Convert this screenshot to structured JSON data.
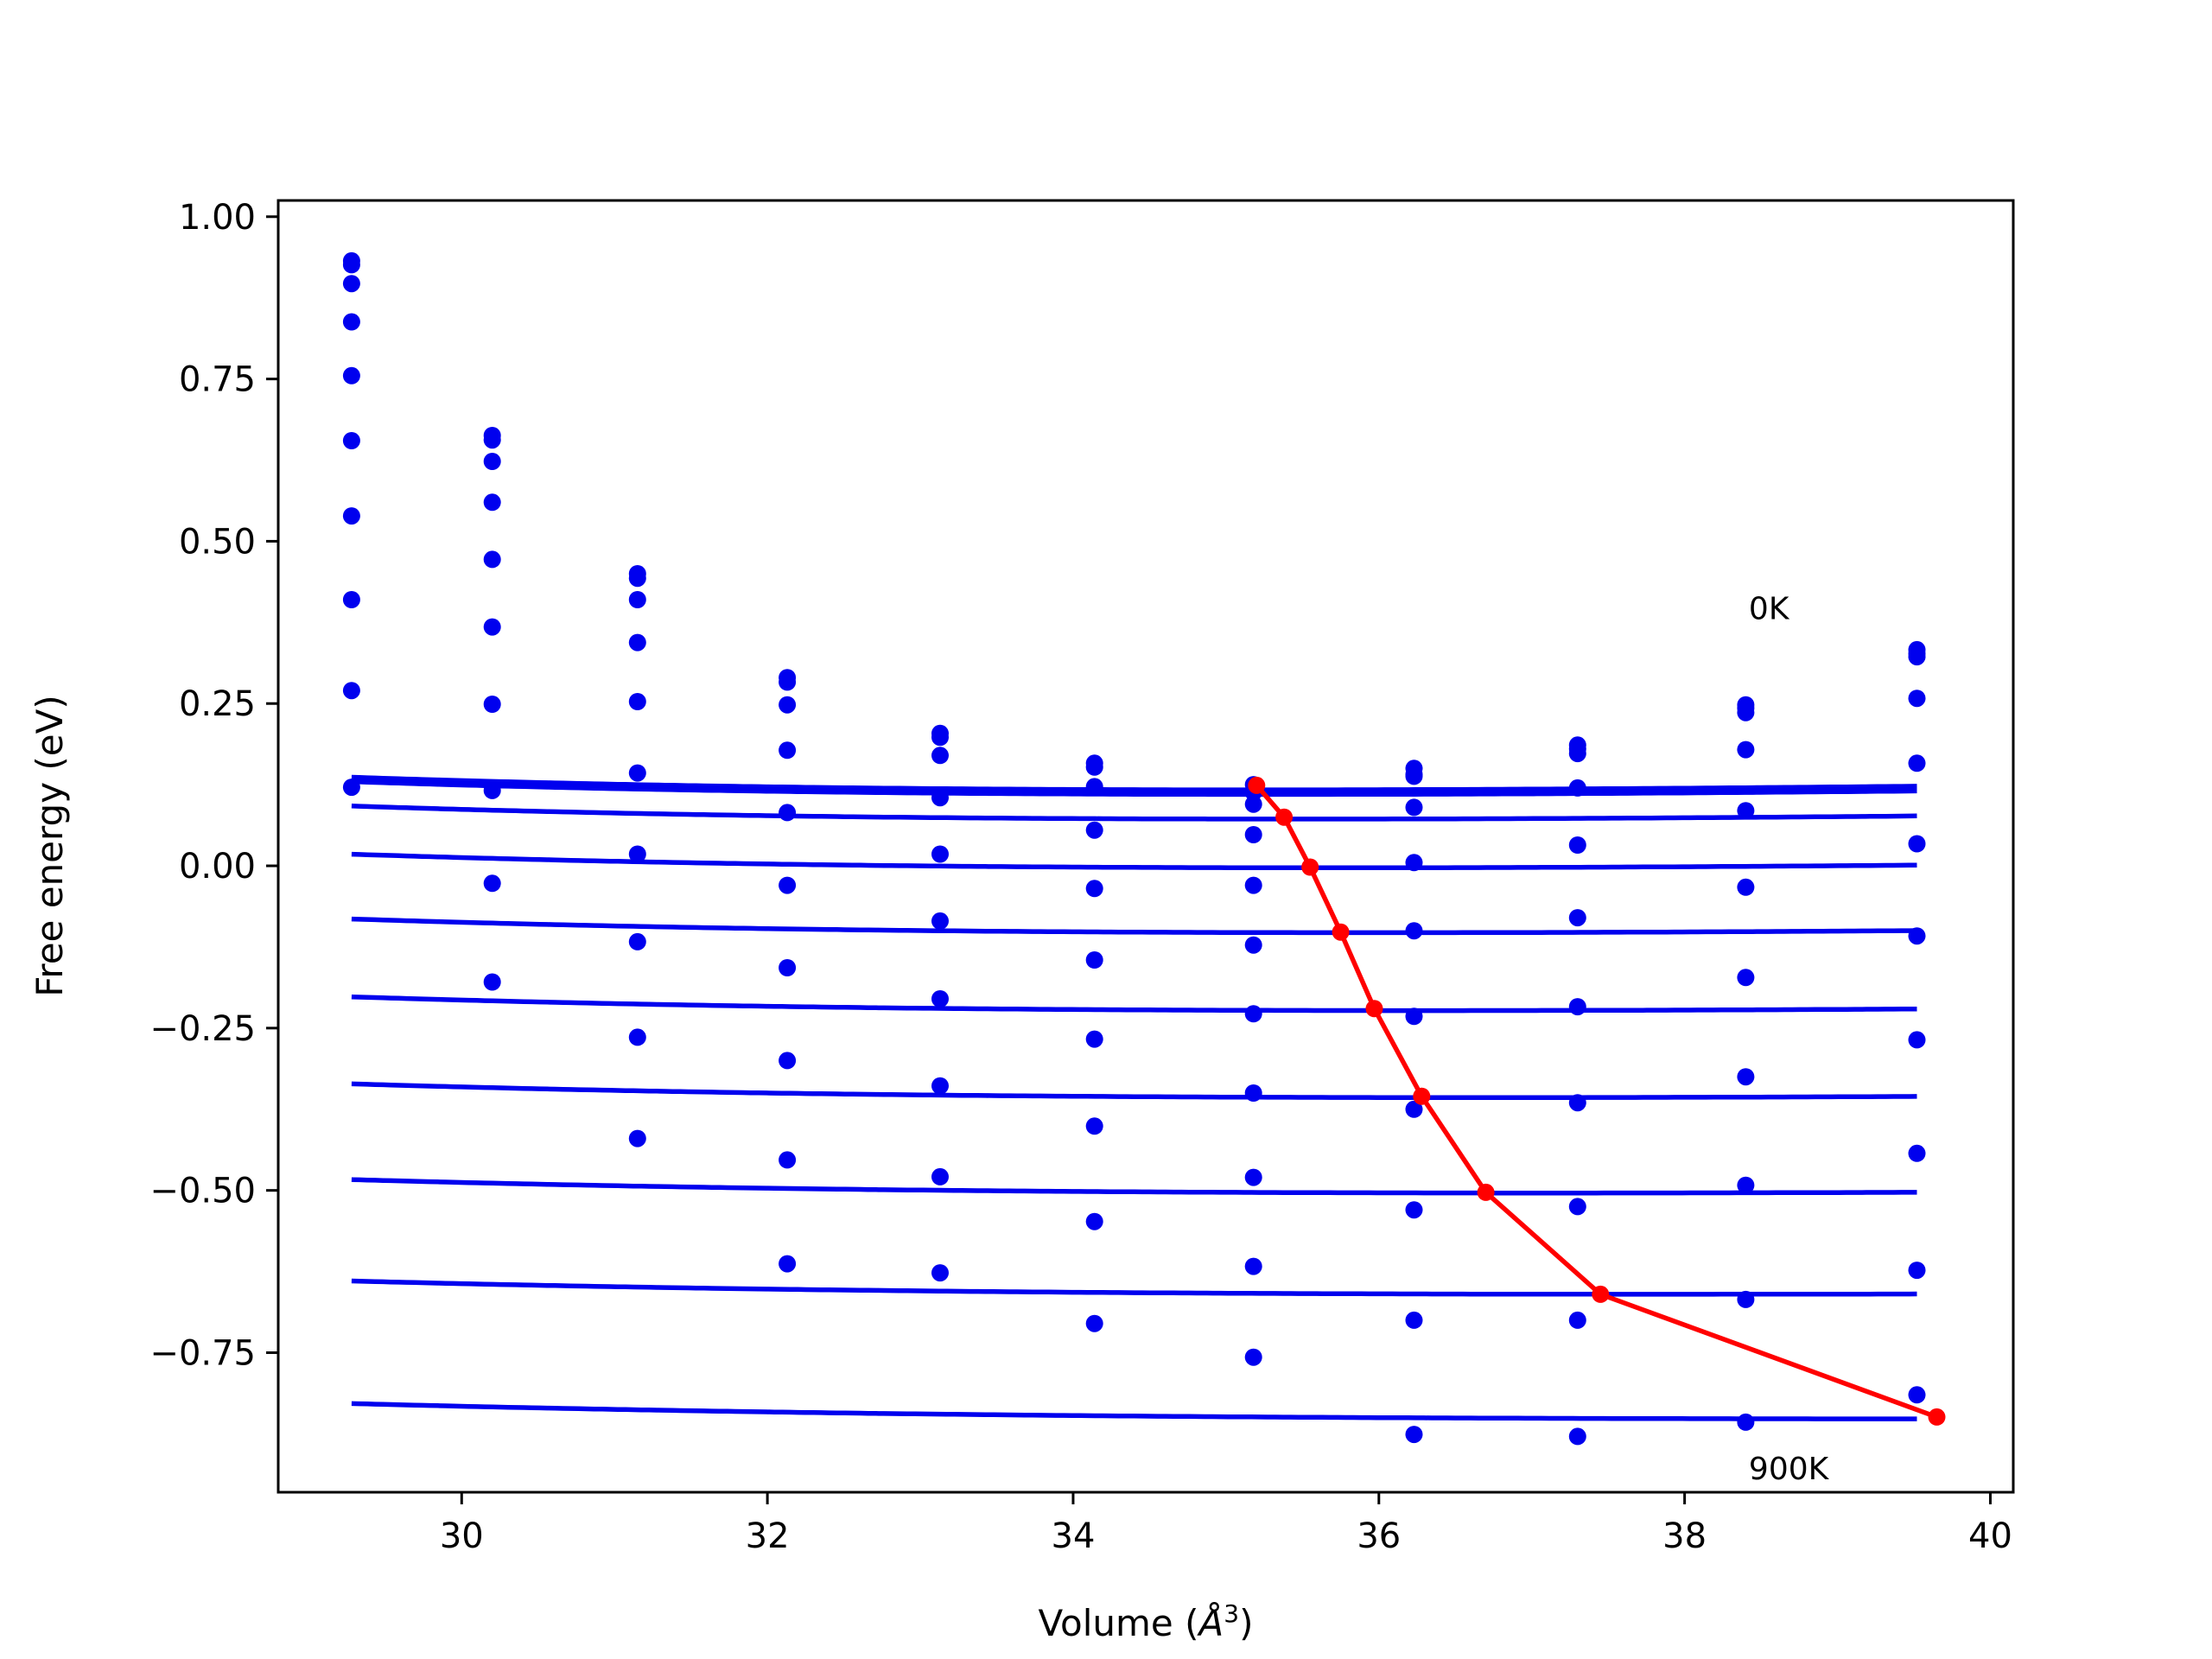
{
  "chart_data": {
    "type": "scatter",
    "xlabel_prefix": "Volume (",
    "xlabel_unit": "Å",
    "xlabel_exp": "3",
    "xlabel_suffix": ")",
    "ylabel": "Free energy (eV)",
    "xlim": [
      28.8,
      40.15
    ],
    "ylim": [
      -0.965,
      1.025
    ],
    "xticks": [
      30,
      32,
      34,
      36,
      38,
      40
    ],
    "xtick_labels": [
      "30",
      "32",
      "34",
      "36",
      "38",
      "40"
    ],
    "yticks": [
      -0.75,
      -0.5,
      -0.25,
      0.0,
      0.25,
      0.5,
      0.75,
      1.0
    ],
    "ytick_labels": [
      "−0.75",
      "−0.50",
      "−0.25",
      "0.00",
      "0.25",
      "0.50",
      "0.75",
      "1.00"
    ],
    "grid": false,
    "annotations": [
      {
        "text": "0K",
        "x": 38.42,
        "y": 0.38
      },
      {
        "text": "900K",
        "x": 38.42,
        "y": -0.945
      }
    ],
    "fit_color": "#0000ee",
    "point_color": "#0000ee",
    "minima_color": "#ff0000",
    "x": [
      29.28,
      30.2,
      31.15,
      32.13,
      33.13,
      34.14,
      35.18,
      36.23,
      37.3,
      38.4,
      39.52
    ],
    "series": [
      {
        "values": [
          0.932,
          0.663,
          0.45,
          0.29,
          0.204,
          0.158,
          0.125,
          0.15,
          0.186,
          0.248,
          0.333
        ],
        "fit": {
          "x0": 35.2,
          "e0": 0.117,
          "k": 0.0135
        }
      },
      {
        "values": [
          0.926,
          0.656,
          0.443,
          0.283,
          0.198,
          0.152,
          0.113,
          0.141,
          0.18,
          0.243,
          0.327
        ],
        "fit": {
          "x0": 35.25,
          "e0": 0.112,
          "k": 0.0134
        }
      },
      {
        "values": [
          0.897,
          0.623,
          0.41,
          0.248,
          0.17,
          0.122,
          0.095,
          0.138,
          0.173,
          0.236,
          0.322
        ],
        "fit": {
          "x0": 35.3,
          "e0": 0.11,
          "k": 0.0132
        }
      },
      {
        "values": [
          0.838,
          0.56,
          0.344,
          0.178,
          0.105,
          0.055,
          0.048,
          0.09,
          0.12,
          0.179,
          0.258
        ],
        "fit": {
          "x0": 35.45,
          "e0": 0.072,
          "k": 0.0128
        }
      },
      {
        "values": [
          0.755,
          0.472,
          0.253,
          0.082,
          0.018,
          -0.035,
          -0.03,
          0.005,
          0.032,
          0.085,
          0.158
        ],
        "fit": {
          "x0": 35.7,
          "e0": -0.003,
          "k": 0.0122
        }
      },
      {
        "values": [
          0.655,
          0.368,
          0.143,
          -0.03,
          -0.085,
          -0.145,
          -0.122,
          -0.1,
          -0.08,
          -0.033,
          0.034
        ],
        "fit": {
          "x0": 35.98,
          "e0": -0.103,
          "k": 0.0112
        }
      },
      {
        "values": [
          0.539,
          0.249,
          0.018,
          -0.157,
          -0.205,
          -0.267,
          -0.228,
          -0.232,
          -0.217,
          -0.172,
          -0.108
        ],
        "fit": {
          "x0": 36.28,
          "e0": -0.223,
          "k": 0.0102
        }
      },
      {
        "values": [
          0.41,
          0.116,
          -0.117,
          -0.3,
          -0.339,
          -0.401,
          -0.35,
          -0.375,
          -0.365,
          -0.325,
          -0.268
        ],
        "fit": {
          "x0": 36.65,
          "e0": -0.357,
          "k": 0.0091
        }
      },
      {
        "values": [
          0.27,
          -0.027,
          -0.264,
          -0.453,
          -0.479,
          -0.548,
          -0.48,
          -0.53,
          -0.525,
          -0.492,
          -0.443
        ],
        "fit": {
          "x0": 37.1,
          "e0": -0.504,
          "k": 0.0078
        }
      },
      {
        "values": [
          0.121,
          -0.179,
          -0.42,
          -0.613,
          -0.627,
          -0.705,
          -0.617,
          -0.7,
          -0.7,
          -0.668,
          -0.623
        ],
        "fit": {
          "x0": 37.85,
          "e0": -0.66,
          "k": 0.0063
        }
      },
      {
        "values": [
          null,
          null,
          null,
          null,
          null,
          null,
          -0.757,
          -0.876,
          -0.879,
          -0.857,
          -0.815
        ],
        "fit": {
          "x0": 39.6,
          "e0": -0.852,
          "k": 0.0048
        }
      }
    ],
    "minima": {
      "x": [
        35.2,
        35.38,
        35.55,
        35.75,
        35.97,
        36.28,
        36.7,
        37.45,
        39.65
      ],
      "y": [
        0.124,
        0.075,
        -0.002,
        -0.102,
        -0.22,
        -0.355,
        -0.503,
        -0.66,
        -0.849
      ]
    }
  }
}
